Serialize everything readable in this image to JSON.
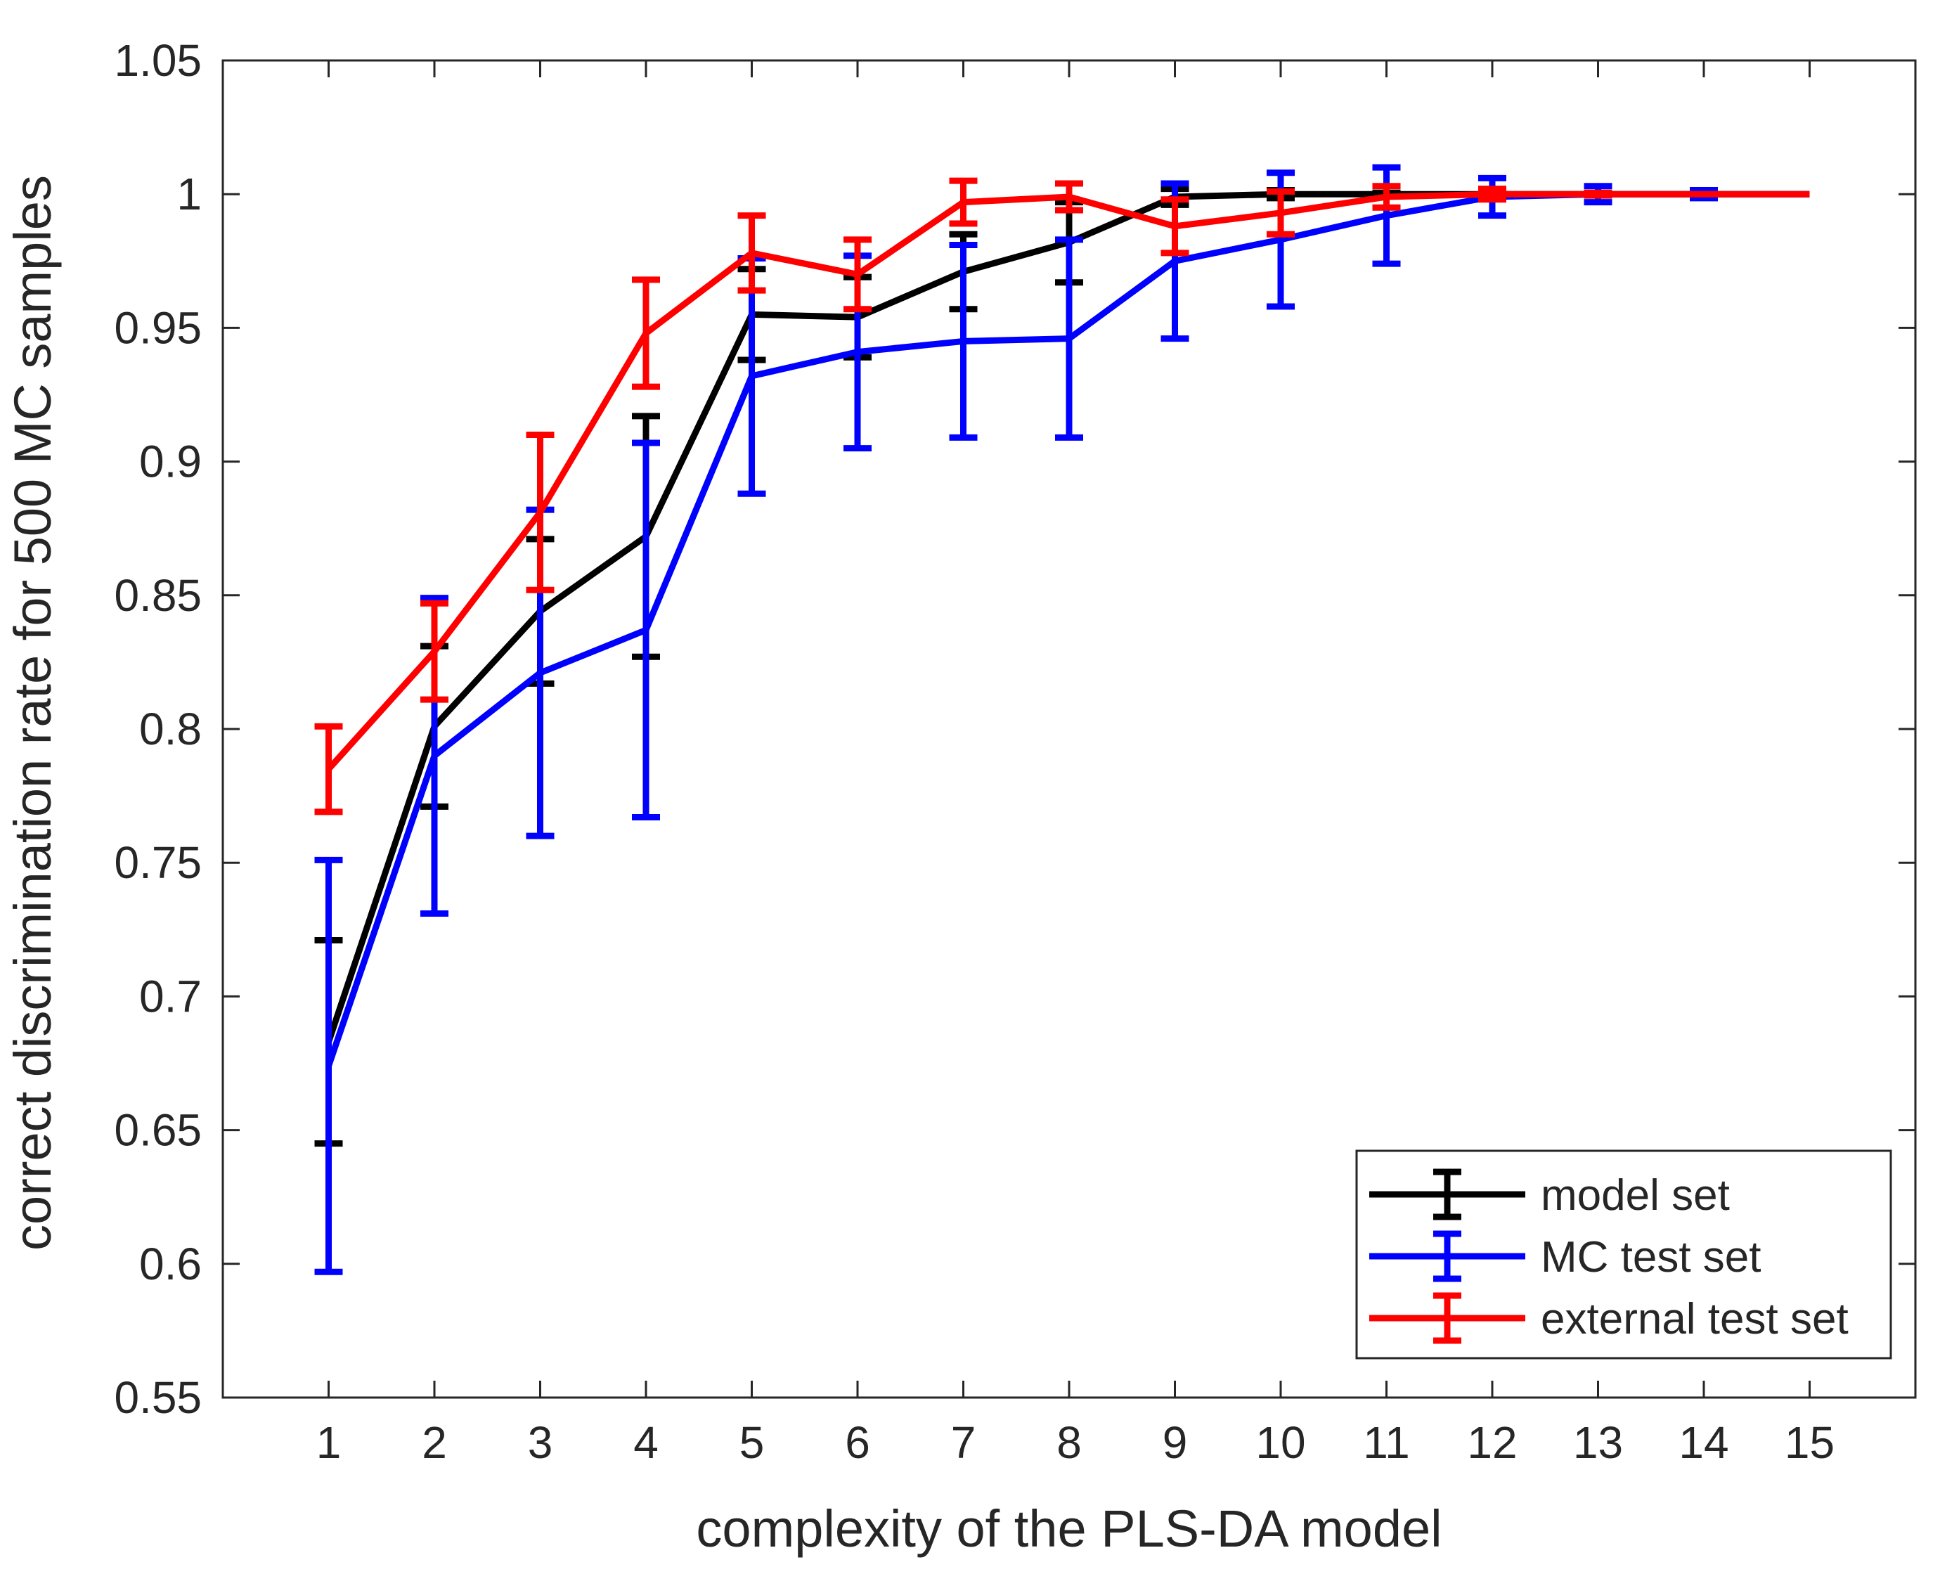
{
  "chart_data": {
    "type": "line",
    "title": "",
    "xlabel": "complexity of the PLS-DA model",
    "ylabel": "correct discrimination rate for 500 MC samples",
    "xlim": [
      0,
      16
    ],
    "ylim": [
      0.55,
      1.05
    ],
    "x": [
      1,
      2,
      3,
      4,
      5,
      6,
      7,
      8,
      9,
      10,
      11,
      12,
      13,
      14,
      15
    ],
    "xticks": [
      "1",
      "2",
      "3",
      "4",
      "5",
      "6",
      "7",
      "8",
      "9",
      "10",
      "11",
      "12",
      "13",
      "14",
      "15"
    ],
    "yticks": [
      "0.55",
      "0.6",
      "0.65",
      "0.7",
      "0.75",
      "0.8",
      "0.85",
      "0.9",
      "0.95",
      "1",
      "1.05"
    ],
    "grid": false,
    "legend_position": "bottom-right",
    "series": [
      {
        "name": "model set",
        "color": "#000000",
        "values": [
          0.683,
          0.801,
          0.844,
          0.872,
          0.955,
          0.954,
          0.971,
          0.982,
          0.999,
          1.0,
          1.0,
          1.0,
          1.0,
          1.0,
          1.0
        ],
        "errors": [
          0.038,
          0.03,
          0.027,
          0.045,
          0.017,
          0.015,
          0.014,
          0.015,
          0.003,
          0.0015,
          0.0005,
          0.0005,
          0.0003,
          0.0,
          0.0
        ]
      },
      {
        "name": "MC test set",
        "color": "#0000FF",
        "values": [
          0.674,
          0.79,
          0.821,
          0.837,
          0.932,
          0.941,
          0.945,
          0.946,
          0.975,
          0.983,
          0.992,
          0.999,
          1.0,
          1.0,
          1.0
        ],
        "errors": [
          0.077,
          0.059,
          0.061,
          0.07,
          0.044,
          0.036,
          0.036,
          0.037,
          0.029,
          0.025,
          0.018,
          0.007,
          0.003,
          0.0015,
          0.0
        ]
      },
      {
        "name": "external test set",
        "color": "#FF0000",
        "values": [
          0.785,
          0.829,
          0.881,
          0.948,
          0.978,
          0.97,
          0.997,
          0.999,
          0.988,
          0.993,
          0.999,
          1.0,
          1.0,
          1.0,
          1.0
        ],
        "errors": [
          0.016,
          0.018,
          0.029,
          0.02,
          0.014,
          0.013,
          0.008,
          0.005,
          0.01,
          0.008,
          0.004,
          0.002,
          0.0005,
          0.0,
          0.0
        ]
      }
    ]
  }
}
